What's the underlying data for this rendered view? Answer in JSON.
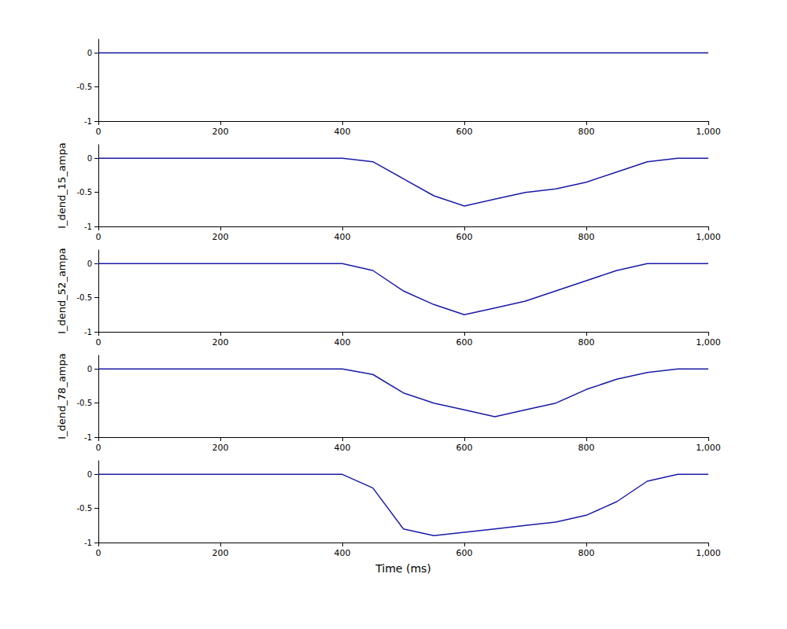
{
  "chart_data": [
    {
      "type": "line",
      "color": "#1a1aa6",
      "x": [
        0,
        50,
        100,
        150,
        200,
        250,
        300,
        350,
        400,
        450,
        500,
        550,
        600,
        650,
        700,
        750,
        800,
        850,
        900,
        950,
        1000
      ],
      "values": [
        0,
        0,
        0,
        0,
        0,
        0,
        0,
        0,
        0,
        0,
        0,
        0,
        0,
        0,
        0,
        0,
        0,
        0,
        0,
        0,
        0
      ],
      "xlim": [
        0,
        1000
      ],
      "xticks": [
        0,
        200,
        400,
        600,
        800,
        1000
      ],
      "ylim": [
        -1,
        0.2
      ],
      "yticks": [
        -1,
        -0.5,
        0
      ]
    },
    {
      "type": "line",
      "color": "#1a1aa6",
      "ylabel": "I_dend_15_ampa",
      "x": [
        0,
        50,
        100,
        150,
        200,
        250,
        300,
        350,
        400,
        450,
        500,
        550,
        600,
        650,
        700,
        750,
        800,
        850,
        900,
        950,
        1000
      ],
      "values": [
        0,
        0,
        0,
        0,
        0,
        0,
        0,
        0,
        0,
        -0.05,
        -0.3,
        -0.55,
        -0.7,
        -0.6,
        -0.5,
        -0.45,
        -0.35,
        -0.2,
        -0.05,
        0,
        0
      ],
      "xlim": [
        0,
        1000
      ],
      "xticks": [
        0,
        200,
        400,
        600,
        800,
        1000
      ],
      "ylim": [
        -1,
        0.2
      ],
      "yticks": [
        -1,
        -0.5,
        0
      ]
    },
    {
      "type": "line",
      "color": "#1a1aa6",
      "ylabel": "I_dend_52_ampa",
      "x": [
        0,
        50,
        100,
        150,
        200,
        250,
        300,
        350,
        400,
        450,
        500,
        550,
        600,
        650,
        700,
        750,
        800,
        850,
        900,
        950,
        1000
      ],
      "values": [
        0,
        0,
        0,
        0,
        0,
        0,
        0,
        0,
        0,
        -0.1,
        -0.4,
        -0.6,
        -0.75,
        -0.65,
        -0.55,
        -0.4,
        -0.25,
        -0.1,
        0,
        0,
        0
      ],
      "xlim": [
        0,
        1000
      ],
      "xticks": [
        0,
        200,
        400,
        600,
        800,
        1000
      ],
      "ylim": [
        -1,
        0.2
      ],
      "yticks": [
        -1,
        -0.5,
        0
      ]
    },
    {
      "type": "line",
      "color": "#1a1aa6",
      "ylabel": "I_dend_78_ampa",
      "x": [
        0,
        50,
        100,
        150,
        200,
        250,
        300,
        350,
        400,
        450,
        500,
        550,
        600,
        650,
        700,
        750,
        800,
        850,
        900,
        950,
        1000
      ],
      "values": [
        0,
        0,
        0,
        0,
        0,
        0,
        0,
        0,
        0,
        -0.08,
        -0.35,
        -0.5,
        -0.6,
        -0.7,
        -0.6,
        -0.5,
        -0.3,
        -0.15,
        -0.05,
        0,
        0
      ],
      "xlim": [
        0,
        1000
      ],
      "xticks": [
        0,
        200,
        400,
        600,
        800,
        1000
      ],
      "ylim": [
        -1,
        0.2
      ],
      "yticks": [
        -1,
        -0.5,
        0
      ]
    },
    {
      "type": "line",
      "color": "#1a1aa6",
      "xlabel": "Time (ms)",
      "x": [
        0,
        50,
        100,
        150,
        200,
        250,
        300,
        350,
        400,
        450,
        500,
        550,
        600,
        650,
        700,
        750,
        800,
        850,
        900,
        950,
        1000
      ],
      "values": [
        0,
        0,
        0,
        0,
        0,
        0,
        0,
        0,
        0,
        -0.2,
        -0.8,
        -0.9,
        -0.85,
        -0.8,
        -0.75,
        -0.7,
        -0.6,
        -0.4,
        -0.1,
        0,
        0
      ],
      "xlim": [
        0,
        1000
      ],
      "xticks": [
        0,
        200,
        400,
        600,
        800,
        1000
      ],
      "ylim": [
        -1,
        0.2
      ],
      "yticks": [
        -1,
        -0.5,
        0
      ]
    }
  ]
}
